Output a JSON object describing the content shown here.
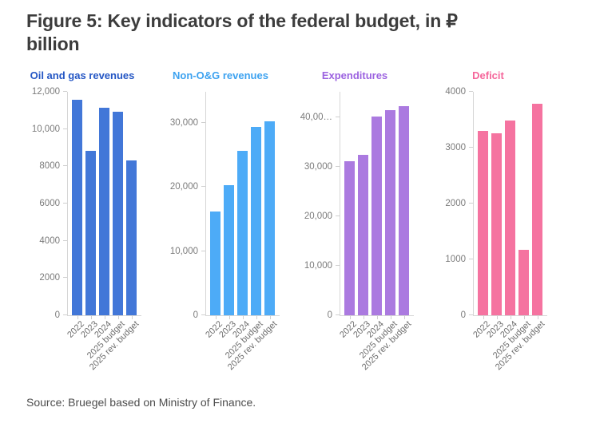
{
  "page": {
    "title_line1": "Figure 5: Key indicators of the federal budget, in ₽",
    "title_line2": "billion",
    "source": "Source: Bruegel based on Ministry of Finance."
  },
  "theme": {
    "title_text_color": "#3c3c3c",
    "tick_text_color": "#7b7b7b",
    "axis_line_color": "#d6d6d6"
  },
  "chart_data": [
    {
      "type": "bar",
      "title": "Oil and gas revenues",
      "title_color": "#2456c4",
      "bar_color": "#4277d8",
      "categories": [
        "2022",
        "2023",
        "2024",
        "2025 budget",
        "2025 rev. budget"
      ],
      "values": [
        11590,
        8820,
        11130,
        10940,
        8320
      ],
      "ylim": [
        0,
        12000
      ],
      "yticks": [
        0,
        2000,
        4000,
        6000,
        8000,
        10000,
        12000
      ],
      "ytick_labels": [
        "0",
        "2000",
        "4000",
        "6000",
        "8000",
        "10,000",
        "12,000"
      ],
      "xlabel": "",
      "ylabel": "",
      "grid": false,
      "legend": false
    },
    {
      "type": "bar",
      "title": "Non-O&G revenues",
      "title_color": "#3da2f0",
      "bar_color": "#4dabf7",
      "categories": [
        "2022",
        "2023",
        "2024",
        "2025 budget",
        "2025 rev. budget"
      ],
      "values": [
        16200,
        20300,
        25600,
        29300,
        30200
      ],
      "ylim": [
        0,
        34800
      ],
      "yticks": [
        0,
        10000,
        20000,
        30000
      ],
      "ytick_labels": [
        "0",
        "10,000",
        "20,000",
        "30,000"
      ],
      "xlabel": "",
      "ylabel": "",
      "grid": false,
      "legend": false
    },
    {
      "type": "bar",
      "title": "Expenditures",
      "title_color": "#9c63e0",
      "bar_color": "#ab7ae0",
      "categories": [
        "2022",
        "2023",
        "2024",
        "2025 budget",
        "2025 rev. budget"
      ],
      "values": [
        31100,
        32400,
        40200,
        41500,
        42300
      ],
      "ylim": [
        0,
        45200
      ],
      "yticks": [
        0,
        10000,
        20000,
        30000,
        40000
      ],
      "ytick_labels": [
        "0",
        "10,000",
        "20,000",
        "30,000",
        "40,00…"
      ],
      "xlabel": "",
      "ylabel": "",
      "grid": false,
      "legend": false
    },
    {
      "type": "bar",
      "title": "Deficit",
      "title_color": "#f5679b",
      "bar_color": "#f573a0",
      "categories": [
        "2022",
        "2023",
        "2024",
        "2025 budget",
        "2025 rev. budget"
      ],
      "values": [
        3300,
        3250,
        3490,
        1170,
        3790
      ],
      "ylim": [
        0,
        4000
      ],
      "yticks": [
        0,
        1000,
        2000,
        3000,
        4000
      ],
      "ytick_labels": [
        "0",
        "1000",
        "2000",
        "3000",
        "4000"
      ],
      "xlabel": "",
      "ylabel": "",
      "grid": false,
      "legend": false
    }
  ]
}
